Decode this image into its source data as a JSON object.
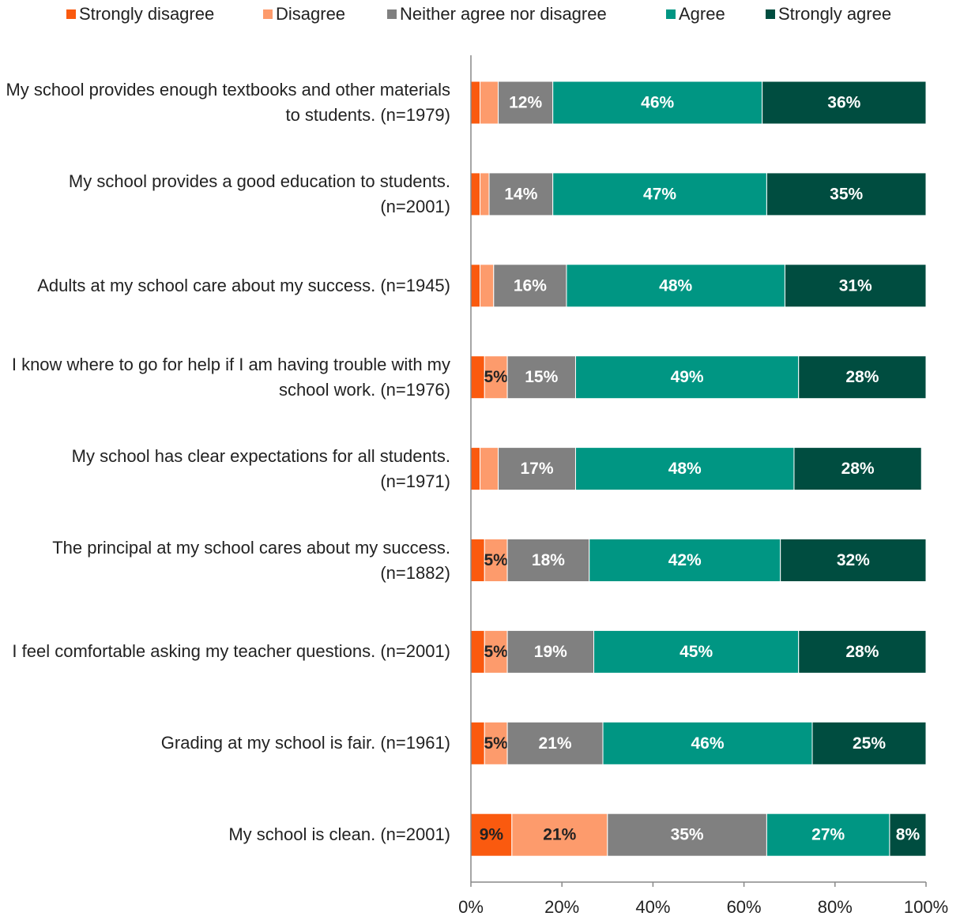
{
  "chart_data": {
    "type": "stacked_barh",
    "categories": [
      "My school provides enough textbooks and other materials to students. (n=1979)",
      "My school provides a good education to students. (n=2001)",
      "Adults at my school care about my success. (n=1945)",
      "I know where to go for help if I am having trouble with my school work. (n=1976)",
      "My school has clear expectations for all students. (n=1971)",
      "The principal at my school cares about my success. (n=1882)",
      "I feel comfortable asking my teacher questions. (n=2001)",
      "Grading at my school is fair. (n=1961)",
      "My school is clean. (n=2001)"
    ],
    "series": [
      {
        "name": "Strongly disagree",
        "color": "#fa5a0f",
        "label_color": "#222222",
        "values": [
          2,
          2,
          2,
          3,
          2,
          3,
          3,
          3,
          9
        ],
        "value_labels": [
          null,
          null,
          null,
          null,
          null,
          null,
          null,
          null,
          "9%"
        ]
      },
      {
        "name": "Disagree",
        "color": "#fd9b6c",
        "label_color": "#222222",
        "values": [
          4,
          2,
          3,
          5,
          4,
          5,
          5,
          5,
          21
        ],
        "value_labels": [
          null,
          null,
          null,
          "5%",
          null,
          "5%",
          "5%",
          "5%",
          "21%"
        ]
      },
      {
        "name": "Neither agree nor disagree",
        "color": "#808080",
        "label_color": "#ffffff",
        "values": [
          12,
          14,
          16,
          15,
          17,
          18,
          19,
          21,
          35
        ],
        "value_labels": [
          "12%",
          "14%",
          "16%",
          "15%",
          "17%",
          "18%",
          "19%",
          "21%",
          "35%"
        ]
      },
      {
        "name": "Agree",
        "color": "#009683",
        "label_color": "#ffffff",
        "values": [
          46,
          47,
          48,
          49,
          48,
          42,
          45,
          46,
          27
        ],
        "value_labels": [
          "46%",
          "47%",
          "48%",
          "49%",
          "48%",
          "42%",
          "45%",
          "46%",
          "27%"
        ]
      },
      {
        "name": "Strongly agree",
        "color": "#004d40",
        "label_color": "#ffffff",
        "values": [
          36,
          35,
          31,
          28,
          28,
          32,
          28,
          25,
          8
        ],
        "value_labels": [
          "36%",
          "35%",
          "31%",
          "28%",
          "28%",
          "32%",
          "28%",
          "25%",
          "8%"
        ]
      }
    ],
    "xlim": [
      0,
      100
    ],
    "xticks": [
      {
        "value": 0,
        "label": "0%"
      },
      {
        "value": 20,
        "label": "20%"
      },
      {
        "value": 40,
        "label": "40%"
      },
      {
        "value": 60,
        "label": "60%"
      },
      {
        "value": 80,
        "label": "80%"
      },
      {
        "value": 100,
        "label": "100%"
      }
    ],
    "legend": "top"
  }
}
